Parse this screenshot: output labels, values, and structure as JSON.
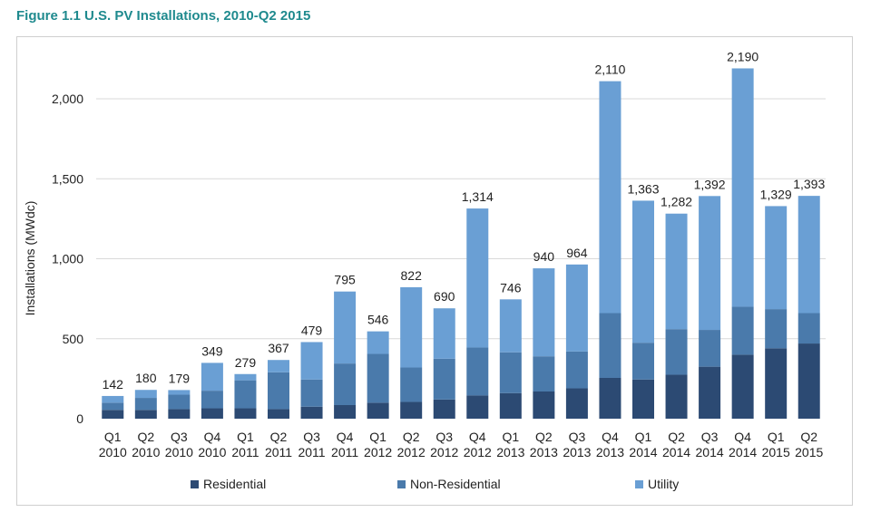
{
  "figure_title": "Figure 1.1  U.S. PV Installations, 2010-Q2 2015",
  "colors": {
    "title": "#1f8a8e",
    "residential": "#2c4a73",
    "non_residential": "#4a7aab",
    "utility": "#6a9fd4",
    "gridline": "#d9d9d9"
  },
  "chart_data": {
    "type": "bar",
    "stacked": true,
    "title": "Figure 1.1  U.S. PV Installations, 2010-Q2 2015",
    "ylabel": "Installations (MWdc)",
    "xlabel": "",
    "ylim": [
      0,
      2300
    ],
    "yticks": [
      0,
      500,
      1000,
      1500,
      2000
    ],
    "ytick_labels": [
      "0",
      "500",
      "1,000",
      "1,500",
      "2,000"
    ],
    "grid": true,
    "legend_position": "bottom",
    "categories": [
      {
        "quarter": "Q1",
        "year": "2010"
      },
      {
        "quarter": "Q2",
        "year": "2010"
      },
      {
        "quarter": "Q3",
        "year": "2010"
      },
      {
        "quarter": "Q4",
        "year": "2010"
      },
      {
        "quarter": "Q1",
        "year": "2011"
      },
      {
        "quarter": "Q2",
        "year": "2011"
      },
      {
        "quarter": "Q3",
        "year": "2011"
      },
      {
        "quarter": "Q4",
        "year": "2011"
      },
      {
        "quarter": "Q1",
        "year": "2012"
      },
      {
        "quarter": "Q2",
        "year": "2012"
      },
      {
        "quarter": "Q3",
        "year": "2012"
      },
      {
        "quarter": "Q4",
        "year": "2012"
      },
      {
        "quarter": "Q1",
        "year": "2013"
      },
      {
        "quarter": "Q2",
        "year": "2013"
      },
      {
        "quarter": "Q3",
        "year": "2013"
      },
      {
        "quarter": "Q4",
        "year": "2013"
      },
      {
        "quarter": "Q1",
        "year": "2014"
      },
      {
        "quarter": "Q2",
        "year": "2014"
      },
      {
        "quarter": "Q3",
        "year": "2014"
      },
      {
        "quarter": "Q4",
        "year": "2014"
      },
      {
        "quarter": "Q1",
        "year": "2015"
      },
      {
        "quarter": "Q2",
        "year": "2015"
      }
    ],
    "totals": [
      142,
      180,
      179,
      349,
      279,
      367,
      479,
      795,
      546,
      822,
      690,
      1314,
      746,
      940,
      964,
      2110,
      1363,
      1282,
      1392,
      2190,
      1329,
      1393
    ],
    "total_labels": [
      "142",
      "180",
      "179",
      "349",
      "279",
      "367",
      "479",
      "795",
      "546",
      "822",
      "690",
      "1,314",
      "746",
      "940",
      "964",
      "2,110",
      "1,363",
      "1,282",
      "1,392",
      "2,190",
      "1,329",
      "1,393"
    ],
    "series": [
      {
        "name": "Residential",
        "color": "#2c4a73",
        "values": [
          55,
          55,
          60,
          65,
          65,
          60,
          75,
          85,
          100,
          105,
          120,
          145,
          160,
          170,
          190,
          255,
          245,
          275,
          325,
          400,
          440,
          470
        ]
      },
      {
        "name": "Non-Residential",
        "color": "#4a7aab",
        "values": [
          45,
          75,
          90,
          110,
          175,
          230,
          170,
          260,
          305,
          215,
          255,
          300,
          255,
          220,
          230,
          405,
          230,
          285,
          230,
          300,
          245,
          190
        ]
      },
      {
        "name": "Utility",
        "color": "#6a9fd4",
        "values": [
          42,
          50,
          29,
          174,
          39,
          77,
          234,
          450,
          141,
          502,
          315,
          869,
          331,
          550,
          544,
          1450,
          888,
          722,
          837,
          1490,
          644,
          733
        ]
      }
    ]
  }
}
